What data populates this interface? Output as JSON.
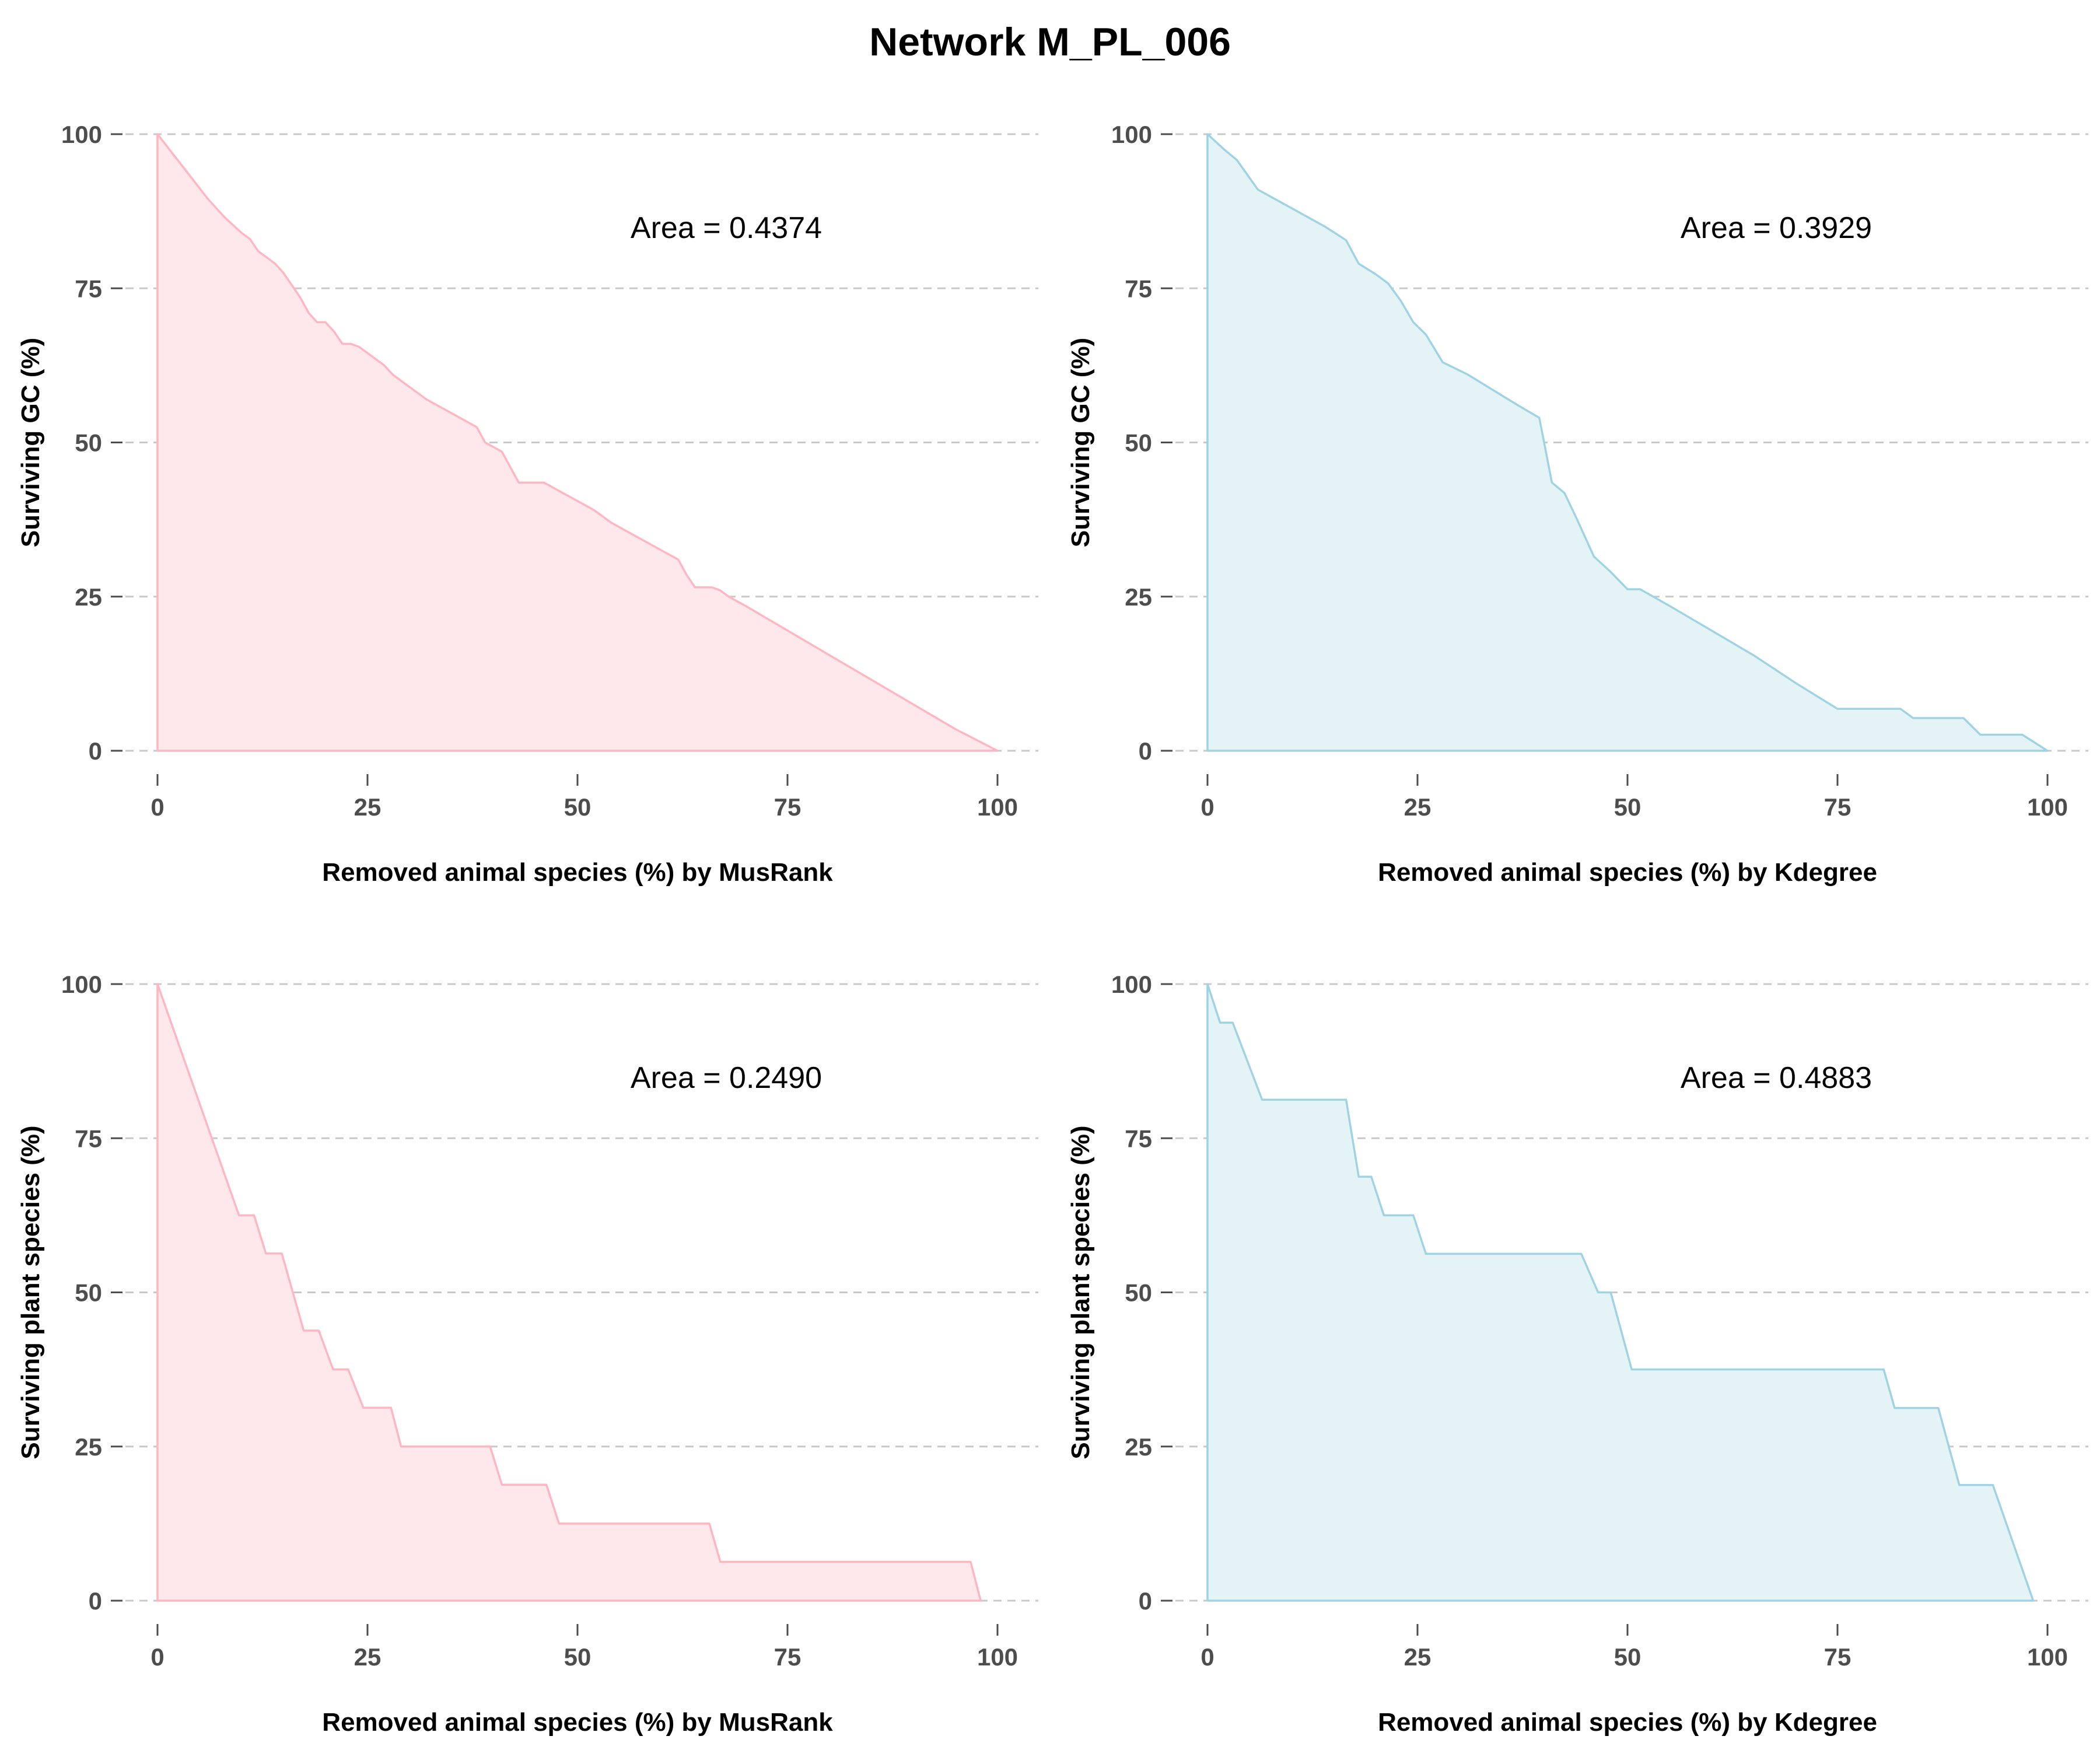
{
  "title": "Network M_PL_006",
  "colors": {
    "pink_line": "#ffb6c1",
    "pink_fill": "#ffe8ec",
    "blue_line": "#9fd3e3",
    "blue_fill": "#e4f3f6",
    "grid": "#c8c8c8",
    "tick_text": "#4d4d4d"
  },
  "chart_data": [
    {
      "type": "area",
      "xlabel": "Removed animal species (%) by MusRank",
      "ylabel": "Surviving GC (%)",
      "annotation": "Area = 0.4374",
      "color_scheme": "pink",
      "xlim": [
        0,
        100
      ],
      "ylim": [
        0,
        100
      ],
      "xticks": [
        "0",
        "25",
        "50",
        "75",
        "100"
      ],
      "yticks": [
        "0",
        "25",
        "50",
        "75",
        "100"
      ],
      "grid": "horizontal dashed",
      "x": [
        0,
        2,
        4,
        6,
        8,
        10,
        11,
        12,
        13,
        14,
        15,
        16,
        17,
        18,
        19,
        20,
        21,
        22,
        23,
        24,
        25,
        26,
        27,
        28,
        29,
        30,
        32,
        34,
        36,
        38,
        39,
        41,
        43,
        44,
        46,
        48,
        50,
        52,
        54,
        56,
        58,
        60,
        62,
        63,
        64,
        66,
        67,
        68,
        70,
        75,
        80,
        85,
        90,
        95,
        100
      ],
      "y": [
        100,
        96.5,
        93,
        89.5,
        86.5,
        84,
        83,
        81,
        80,
        79,
        77.5,
        75.5,
        73.5,
        71,
        69.5,
        69.5,
        68,
        66,
        66,
        65.5,
        64.5,
        63.5,
        62.5,
        61,
        60,
        59,
        57,
        55.5,
        54,
        52.5,
        50,
        48.5,
        43.5,
        43.5,
        43.5,
        42,
        40.5,
        39,
        37,
        35.5,
        34,
        32.5,
        31,
        28.5,
        26.5,
        26.5,
        26,
        25,
        23.5,
        19.5,
        15.5,
        11.5,
        7.5,
        3.5,
        0
      ]
    },
    {
      "type": "area",
      "xlabel": "Removed animal species (%) by Kdegree",
      "ylabel": "Surviving GC (%)",
      "annotation": "Area = 0.3929",
      "color_scheme": "blue",
      "xlim": [
        0,
        100
      ],
      "ylim": [
        0,
        100
      ],
      "xticks": [
        "0",
        "25",
        "50",
        "75",
        "100"
      ],
      "yticks": [
        "0",
        "25",
        "50",
        "75",
        "100"
      ],
      "grid": "horizontal dashed",
      "x": [
        0,
        2,
        3.5,
        6,
        10,
        14,
        16.5,
        18,
        20,
        21.5,
        23,
        24.5,
        26,
        28,
        31,
        34,
        37,
        39.5,
        41,
        42.5,
        44,
        46,
        48,
        50,
        51.5,
        55,
        60,
        65,
        70,
        75,
        78,
        81,
        82.5,
        84,
        87,
        90,
        92,
        94.5,
        97,
        100
      ],
      "y": [
        100,
        97.5,
        95.8,
        91,
        88,
        85,
        82.8,
        79,
        77.3,
        75.8,
        73,
        69.5,
        67.5,
        63,
        61,
        58.5,
        56,
        54,
        43.5,
        41.8,
        37.5,
        31.5,
        29,
        26.2,
        26.2,
        23.5,
        19.5,
        15.5,
        11,
        6.8,
        6.8,
        6.8,
        6.8,
        5.3,
        5.3,
        5.3,
        2.6,
        2.6,
        2.6,
        0
      ]
    },
    {
      "type": "area",
      "xlabel": "Removed animal species (%) by MusRank",
      "ylabel": "Surviving plant species (%)",
      "annotation": "Area = 0.2490",
      "color_scheme": "pink",
      "xlim": [
        0,
        100
      ],
      "ylim": [
        0,
        100
      ],
      "xticks": [
        "0",
        "25",
        "50",
        "75",
        "100"
      ],
      "yticks": [
        "0",
        "25",
        "50",
        "75",
        "100"
      ],
      "grid": "horizontal dashed",
      "x": [
        0,
        9.7,
        11.5,
        12.9,
        14.8,
        17.4,
        19.2,
        20.9,
        22.7,
        24.5,
        27.8,
        29,
        39.6,
        41,
        46.3,
        47.8,
        65.7,
        67,
        96.8,
        98
      ],
      "y": [
        100,
        62.5,
        62.5,
        56.3,
        56.3,
        43.8,
        43.8,
        37.5,
        37.5,
        31.3,
        31.3,
        25,
        25,
        18.8,
        18.8,
        12.5,
        12.5,
        6.3,
        6.3,
        0
      ]
    },
    {
      "type": "area",
      "xlabel": "Removed animal species (%) by Kdegree",
      "ylabel": "Surviving plant species (%)",
      "annotation": "Area = 0.4883",
      "color_scheme": "blue",
      "xlim": [
        0,
        100
      ],
      "ylim": [
        0,
        100
      ],
      "xticks": [
        "0",
        "25",
        "50",
        "75",
        "100"
      ],
      "yticks": [
        "0",
        "25",
        "50",
        "75",
        "100"
      ],
      "grid": "horizontal dashed",
      "x": [
        0,
        1.5,
        3,
        6.5,
        16.5,
        18,
        19.5,
        21,
        24.5,
        26,
        44.5,
        46.5,
        48,
        50.5,
        80.5,
        81.8,
        87,
        89.5,
        91.2,
        93.5,
        98.3
      ],
      "y": [
        100,
        93.75,
        93.75,
        81.25,
        81.25,
        68.75,
        68.75,
        62.5,
        62.5,
        56.25,
        56.25,
        50,
        50,
        37.5,
        37.5,
        31.25,
        31.25,
        18.75,
        18.75,
        18.75,
        0
      ]
    }
  ]
}
